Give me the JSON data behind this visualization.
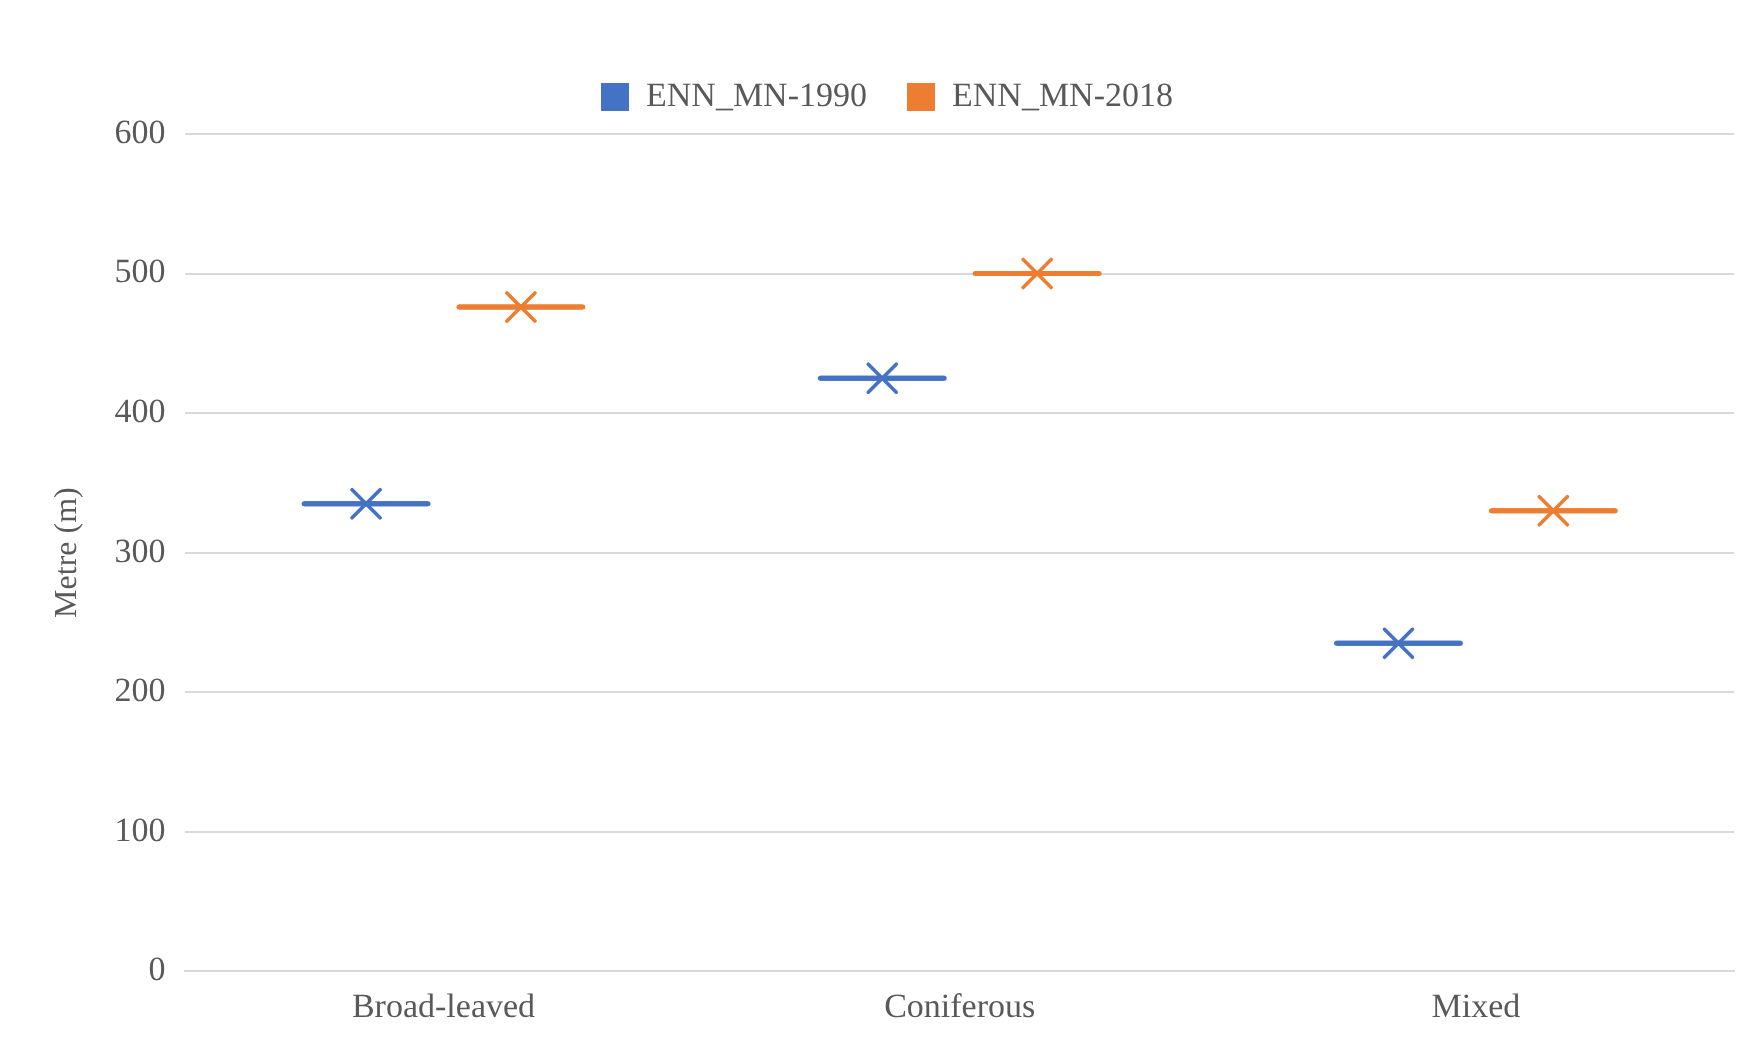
{
  "chart_data": {
    "type": "box",
    "ylabel": "Metre (m)",
    "categories": [
      "Broad-leaved",
      "Coniferous",
      "Mixed"
    ],
    "series": [
      {
        "name": "ENN_MN-1990",
        "color": "#4472c4",
        "boxes": [
          {
            "low": 335,
            "q1": 335,
            "median": 335,
            "q3": 335,
            "high": 335,
            "mean": 335
          },
          {
            "low": 425,
            "q1": 425,
            "median": 425,
            "q3": 425,
            "high": 425,
            "mean": 425
          },
          {
            "low": 235,
            "q1": 235,
            "median": 235,
            "q3": 235,
            "high": 235,
            "mean": 235
          }
        ]
      },
      {
        "name": "ENN_MN-2018",
        "color": "#ed7d31",
        "boxes": [
          {
            "low": 476,
            "q1": 476,
            "median": 476,
            "q3": 476,
            "high": 476,
            "mean": 476
          },
          {
            "low": 500,
            "q1": 500,
            "median": 500,
            "q3": 500,
            "high": 500,
            "mean": 500
          },
          {
            "low": 330,
            "q1": 330,
            "median": 330,
            "q3": 330,
            "high": 330,
            "mean": 330
          }
        ]
      }
    ],
    "ylim": [
      0,
      600
    ],
    "yticks": [
      0,
      100,
      200,
      300,
      400,
      500,
      600
    ],
    "grid": "y",
    "legend": "top",
    "marker": "cross"
  }
}
